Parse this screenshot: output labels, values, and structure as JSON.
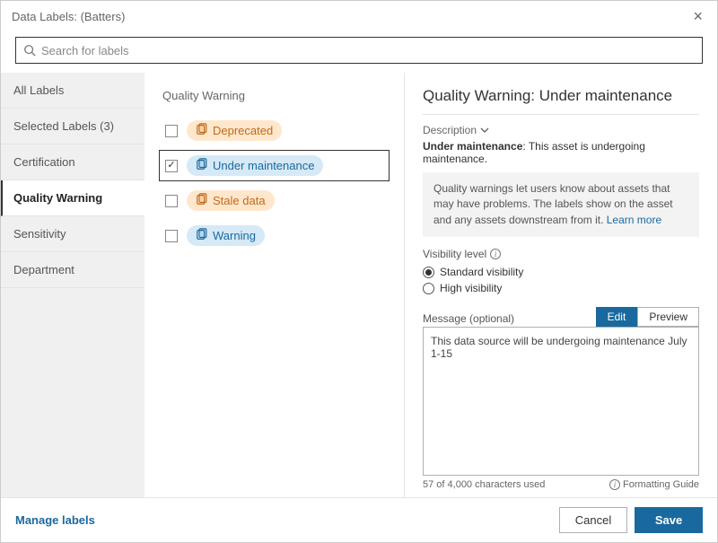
{
  "title": "Data Labels: (Batters)",
  "search": {
    "placeholder": "Search for labels"
  },
  "sidebar": {
    "items": [
      {
        "label": "All Labels",
        "active": false
      },
      {
        "label": "Selected Labels (3)",
        "active": false
      },
      {
        "label": "Certification",
        "active": false
      },
      {
        "label": "Quality Warning",
        "active": true
      },
      {
        "label": "Sensitivity",
        "active": false
      },
      {
        "label": "Department",
        "active": false
      }
    ]
  },
  "center": {
    "heading": "Quality Warning",
    "labels": [
      {
        "text": "Deprecated",
        "checked": false,
        "selected": false,
        "bg": "#ffe7cd",
        "color": "#c06a15",
        "iconColor": "#c06a15"
      },
      {
        "text": "Under maintenance",
        "checked": true,
        "selected": true,
        "bg": "#d5e9f6",
        "color": "#1a699e",
        "iconColor": "#1a699e"
      },
      {
        "text": "Stale data",
        "checked": false,
        "selected": false,
        "bg": "#ffe7cd",
        "color": "#c06a15",
        "iconColor": "#c06a15"
      },
      {
        "text": "Warning",
        "checked": false,
        "selected": false,
        "bg": "#d5e9f6",
        "color": "#1a699e",
        "iconColor": "#1a699e"
      }
    ]
  },
  "detail": {
    "heading": "Quality Warning: Under maintenance",
    "descToggle": "Description",
    "descLabel": "Under maintenance",
    "descText": ": This asset is undergoing maintenance.",
    "infoText": "Quality warnings let users know about assets that may have problems. The labels show on the asset and any assets downstream from it. ",
    "learnMore": "Learn more",
    "visibilityLabel": "Visibility level",
    "visibility": {
      "standard": "Standard visibility",
      "high": "High visibility",
      "selected": "standard"
    },
    "messageLabel": "Message (optional)",
    "tabs": {
      "edit": "Edit",
      "preview": "Preview",
      "active": "edit"
    },
    "messageValue": "This data source will be undergoing maintenance July 1-15",
    "charCounter": "57 of 4,000 characters used",
    "formattingGuide": "Formatting Guide"
  },
  "footer": {
    "manage": "Manage labels",
    "cancel": "Cancel",
    "save": "Save"
  }
}
